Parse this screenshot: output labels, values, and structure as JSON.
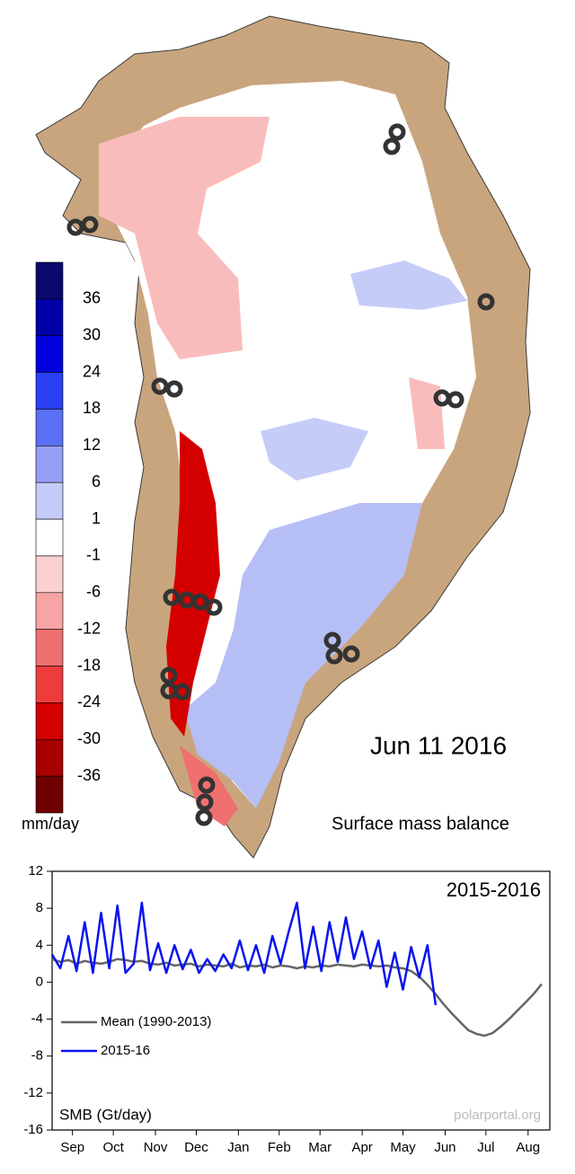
{
  "map": {
    "date": "Jun 11 2016",
    "title": "Surface mass balance",
    "colorbar": {
      "unit": "mm/day",
      "labels": [
        36,
        30,
        24,
        18,
        12,
        6,
        1,
        -1,
        -6,
        -12,
        -18,
        -24,
        -30,
        -36
      ],
      "colors": [
        "#0a0a6e",
        "#0000a8",
        "#0000dc",
        "#2a40f4",
        "#5a70f4",
        "#96a0f4",
        "#c6ccf8",
        "#ffffff",
        "#fad0d0",
        "#f6a4a4",
        "#f07070",
        "#ec3c3c",
        "#d40000",
        "#a80000",
        "#700000"
      ]
    }
  },
  "chart_data": {
    "type": "line",
    "title": "2015-2016",
    "y_label": "SMB (Gt/day)",
    "source": "polarportal.org",
    "x": [
      0,
      6,
      12,
      18,
      24,
      30,
      36,
      42,
      48,
      54,
      60,
      66,
      72,
      78,
      84,
      90,
      96,
      102,
      108,
      114,
      120,
      126,
      132,
      138,
      144,
      150,
      156,
      162,
      168,
      174,
      180,
      186,
      192,
      198,
      204,
      210,
      216,
      222,
      228,
      234,
      240,
      246,
      252,
      258,
      264,
      270,
      276,
      282,
      288,
      294,
      300,
      306,
      312,
      318,
      324,
      330,
      336,
      342,
      348,
      354,
      360
    ],
    "xlim": [
      0,
      366
    ],
    "xticks": [
      {
        "value": 15,
        "label": "Sep"
      },
      {
        "value": 45,
        "label": "Oct"
      },
      {
        "value": 76,
        "label": "Nov"
      },
      {
        "value": 106,
        "label": "Dec"
      },
      {
        "value": 137,
        "label": "Jan"
      },
      {
        "value": 167,
        "label": "Feb"
      },
      {
        "value": 197,
        "label": "Mar"
      },
      {
        "value": 228,
        "label": "Apr"
      },
      {
        "value": 258,
        "label": "May"
      },
      {
        "value": 289,
        "label": "Jun"
      },
      {
        "value": 319,
        "label": "Jul"
      },
      {
        "value": 350,
        "label": "Aug"
      }
    ],
    "ylim": [
      -16,
      12
    ],
    "yticks": [
      -16,
      -12,
      -8,
      -4,
      0,
      4,
      8,
      12
    ],
    "legend": "lower left",
    "series": [
      {
        "name": "Mean (1990-2013)",
        "color": "#666666",
        "values": [
          2.5,
          2.2,
          2.4,
          2.0,
          2.3,
          2.1,
          2.0,
          2.2,
          2.5,
          2.4,
          2.2,
          2.3,
          2.0,
          1.9,
          2.1,
          1.8,
          1.9,
          2.0,
          1.7,
          1.9,
          1.8,
          1.7,
          2.0,
          1.6,
          1.8,
          1.7,
          1.9,
          1.6,
          1.8,
          1.7,
          1.5,
          1.7,
          1.6,
          1.8,
          1.7,
          1.9,
          1.8,
          1.7,
          1.9,
          1.8,
          1.7,
          1.8,
          1.6,
          1.5,
          1.2,
          0.6,
          -0.3,
          -1.3,
          -2.4,
          -3.4,
          -4.3,
          -5.2,
          -5.6,
          -5.8,
          -5.5,
          -4.8,
          -4.0,
          -3.1,
          -2.2,
          -1.3,
          -0.2
        ]
      },
      {
        "name": "2015-16",
        "color": "#0a14f0",
        "values": [
          3.0,
          1.5,
          5.0,
          1.2,
          6.5,
          1.0,
          7.5,
          1.5,
          8.3,
          1.0,
          2.0,
          8.6,
          1.3,
          4.2,
          1.0,
          4.0,
          1.4,
          3.5,
          1.0,
          2.5,
          1.2,
          3.0,
          1.5,
          4.5,
          1.3,
          4.0,
          1.0,
          5.0,
          2.0,
          5.5,
          8.6,
          1.5,
          6.0,
          1.2,
          6.5,
          2.2,
          7.0,
          2.5,
          5.5,
          1.5,
          4.5,
          -0.5,
          3.2,
          -0.8,
          3.8,
          0.5,
          4.0,
          -2.5,
          null,
          null,
          null,
          null,
          null,
          null,
          null,
          null,
          null,
          null,
          null,
          null,
          null
        ]
      }
    ]
  }
}
